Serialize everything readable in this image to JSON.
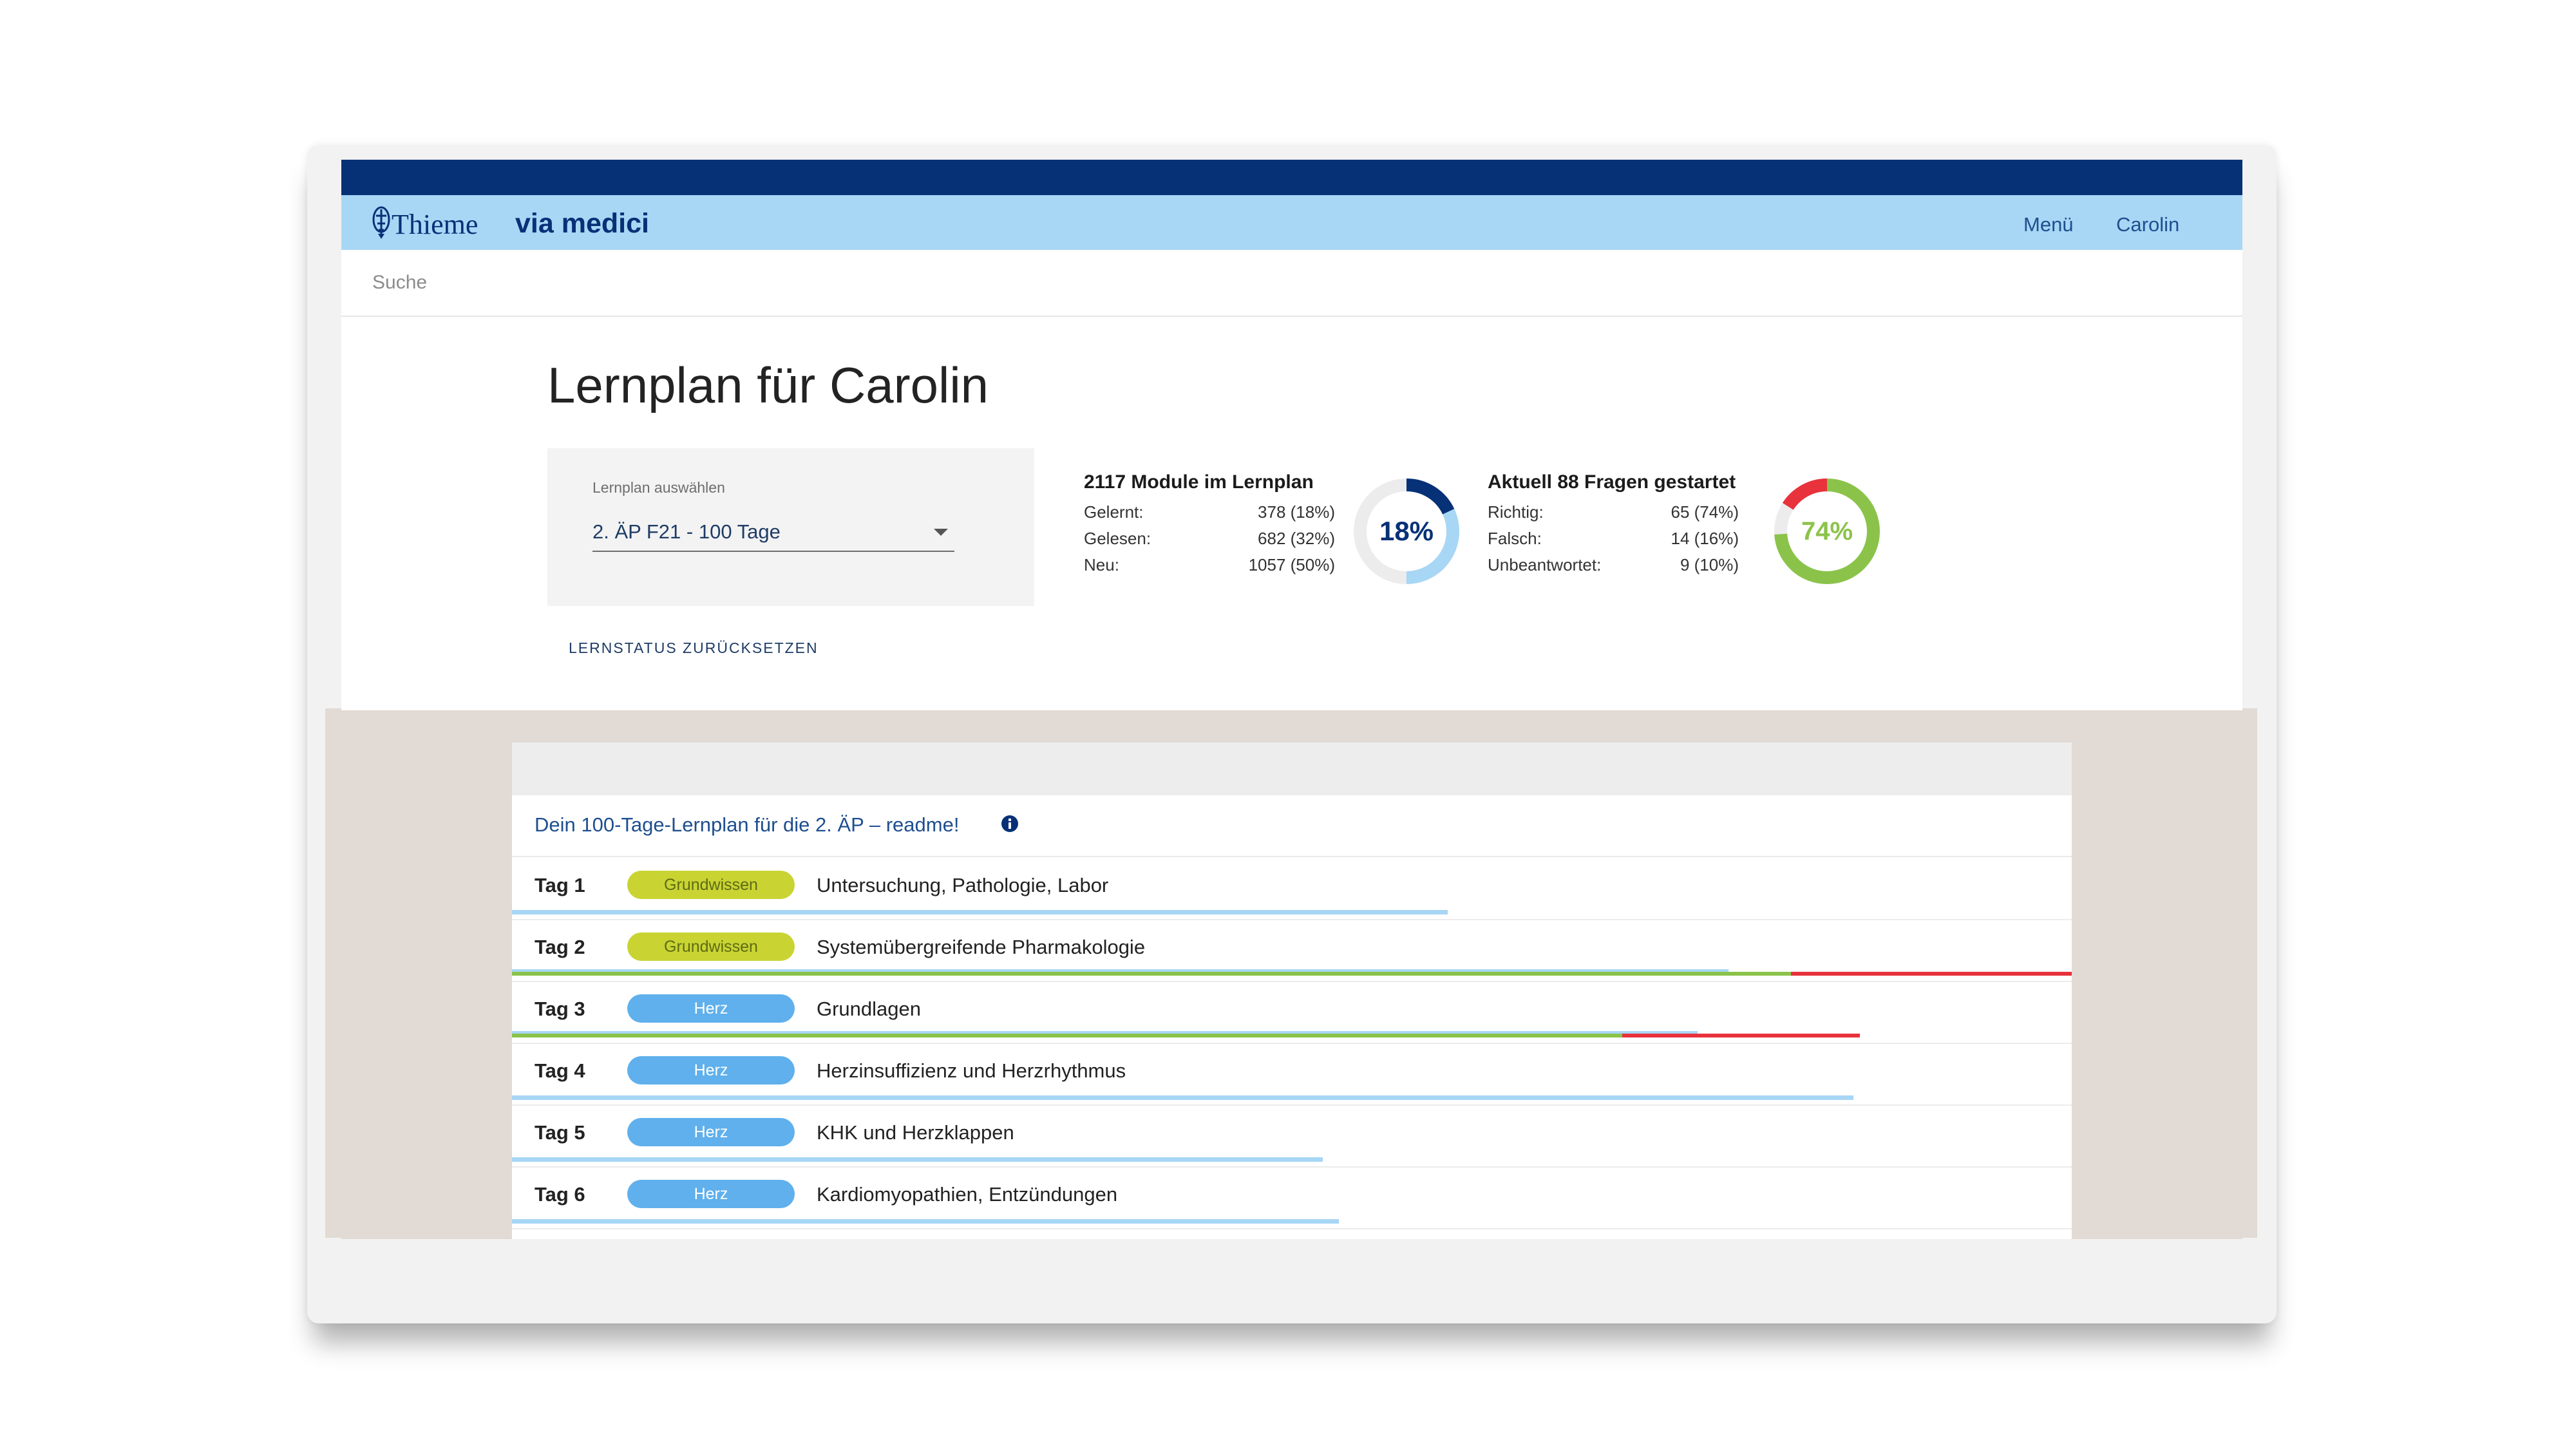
{
  "colors": {
    "navy": "#063177",
    "nav_bg": "#a8d6f5",
    "read_blue": "#a8d6f5",
    "correct_green": "#8bc34a",
    "wrong_red": "#e8323c",
    "badge_grundwissen": "#c9d433",
    "badge_herz": "#5fb0ec"
  },
  "header": {
    "brand": "Thieme",
    "brand_sub": "via medici",
    "menu_label": "Menü",
    "user_label": "Carolin"
  },
  "search": {
    "placeholder": "Suche"
  },
  "page": {
    "title": "Lernplan für Carolin"
  },
  "lernplan_select": {
    "label": "Lernplan auswählen",
    "value": "2. ÄP F21 - 100 Tage"
  },
  "reset_button": "LERNSTATUS ZURÜCKSETZEN",
  "modules": {
    "heading": "2117 Module im Lernplan",
    "rows": [
      {
        "label": "Gelernt:",
        "value": "378 (18%)"
      },
      {
        "label": "Gelesen:",
        "value": "682 (32%)"
      },
      {
        "label": "Neu:",
        "value": "1057 (50%)"
      }
    ],
    "donut_label": "18%",
    "donut": {
      "learned": 0.18,
      "read": 0.32,
      "new": 0.5
    }
  },
  "questions": {
    "heading": "Aktuell 88 Fragen gestartet",
    "rows": [
      {
        "label": "Richtig:",
        "value": "65 (74%)"
      },
      {
        "label": "Falsch:",
        "value": "14 (16%)"
      },
      {
        "label": "Unbeantwortet:",
        "value": "9 (10%)"
      }
    ],
    "donut_label": "74%",
    "donut": {
      "correct": 0.74,
      "wrong": 0.16,
      "unanswered": 0.1
    }
  },
  "plan": {
    "readme": "Dein 100-Tage-Lernplan für die 2. ÄP – readme!",
    "days": [
      {
        "day": "Tag 1",
        "tag": "Grundwissen",
        "tag_color": "green",
        "title": "Untersuchung, Pathologie, Labor",
        "read": 0.6
      },
      {
        "day": "Tag 2",
        "tag": "Grundwissen",
        "tag_color": "green",
        "title": "Systemübergreifende Pharmakologie",
        "read": 0.78,
        "correct": 0.82,
        "wrong": 0.18
      },
      {
        "day": "Tag 3",
        "tag": "Herz",
        "tag_color": "blue",
        "title": "Grundlagen",
        "read": 0.76,
        "correct": 0.712,
        "wrong": 0.152
      },
      {
        "day": "Tag 4",
        "tag": "Herz",
        "tag_color": "blue",
        "title": "Herzinsuffizienz und Herzrhythmus",
        "read": 0.86
      },
      {
        "day": "Tag 5",
        "tag": "Herz",
        "tag_color": "blue",
        "title": "KHK und Herzklappen",
        "read": 0.52
      },
      {
        "day": "Tag 6",
        "tag": "Herz",
        "tag_color": "blue",
        "title": "Kardiomyopathien, Entzündungen",
        "read": 0.53
      }
    ]
  }
}
